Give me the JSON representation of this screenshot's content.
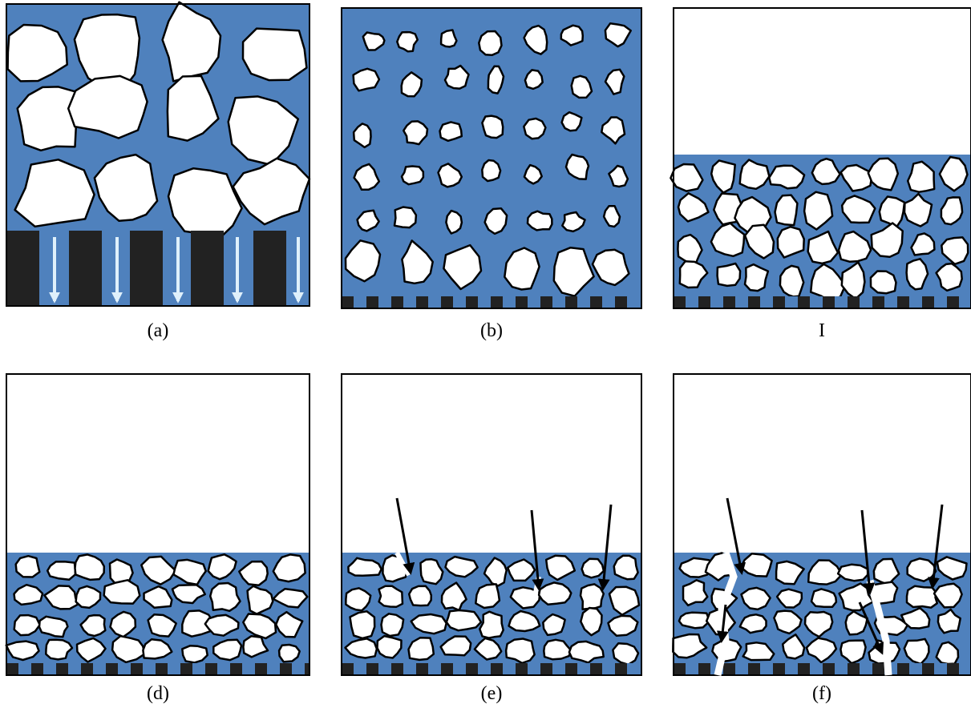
{
  "panels": [
    {
      "label": "(a)"
    },
    {
      "label": "(b)"
    },
    {
      "label": "I"
    },
    {
      "label": "(d)"
    },
    {
      "label": "(e)"
    },
    {
      "label": "(f)"
    }
  ]
}
